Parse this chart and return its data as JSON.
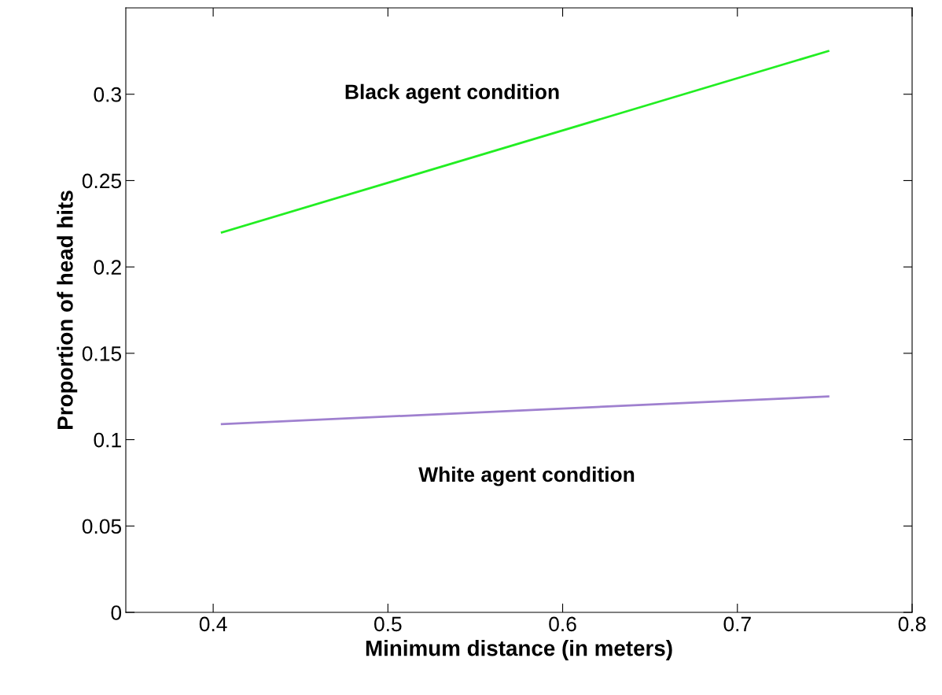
{
  "chart_data": {
    "type": "line",
    "xlabel": "Minimum distance (in meters)",
    "ylabel": "Proportion of head hits",
    "series": [
      {
        "color": "#22ee22",
        "values": [
          0.22,
          0.325
        ]
      },
      {
        "color": "#9f80cf",
        "values": [
          0.109,
          0.125
        ]
      }
    ],
    "x": [
      0.405,
      0.752
    ],
    "annotations": [
      "Black agent condition",
      "White agent condition"
    ],
    "xlim": [
      0.35,
      0.8
    ],
    "xticks": [
      0.4,
      0.5,
      0.6,
      0.7,
      0.8
    ],
    "ylim": [
      0,
      0.35
    ],
    "yticks": [
      0,
      0.05,
      0.1,
      0.15,
      0.2,
      0.25,
      0.3
    ],
    "grid": false,
    "legend": false,
    "marker": "none",
    "line_style": "solid"
  }
}
